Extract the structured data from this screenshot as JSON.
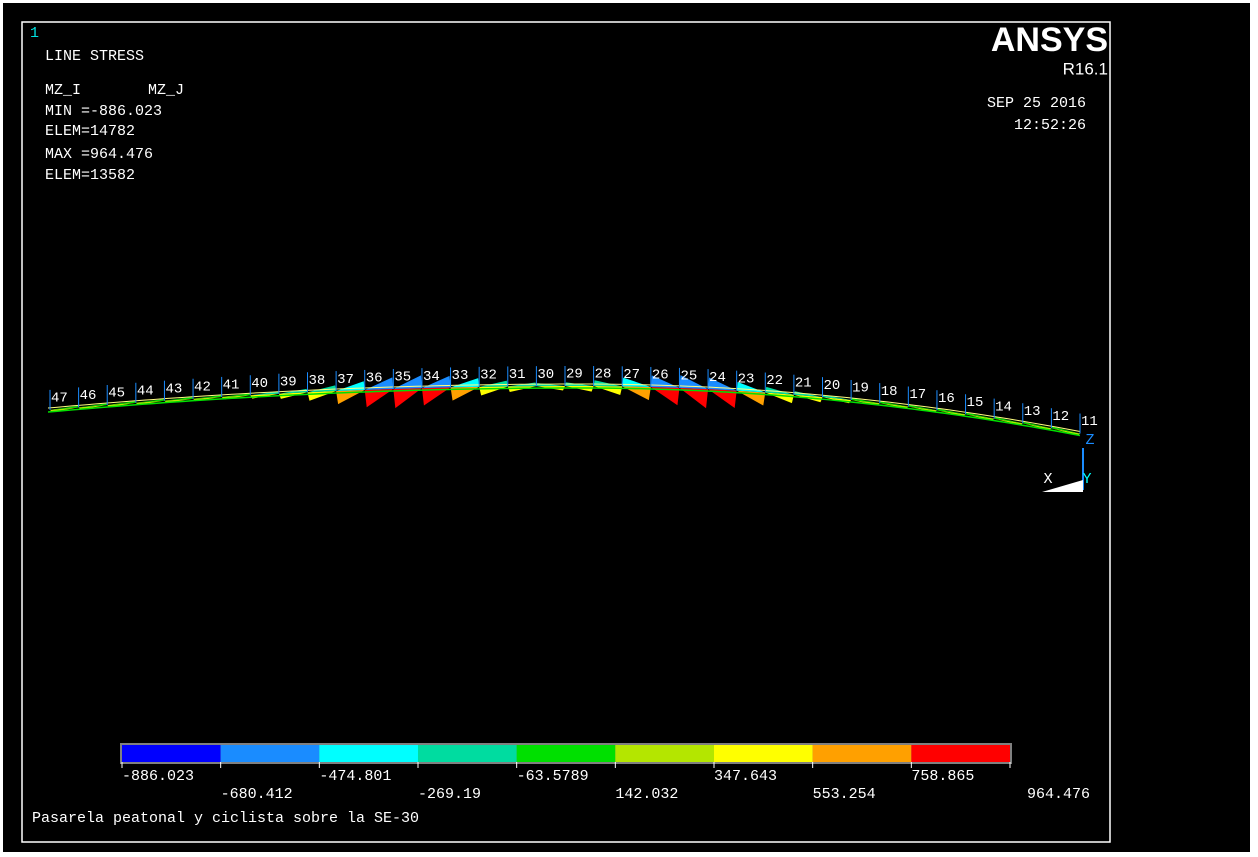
{
  "window_number": "1",
  "plot_title": "LINE STRESS",
  "items": [
    "MZ_I",
    "MZ_J"
  ],
  "stats": [
    "MIN =-886.023",
    "ELEM=14782",
    "MAX =964.476",
    "ELEM=13582"
  ],
  "brand": "ANSYS",
  "release": "R16.1",
  "date": "SEP 25 2016",
  "time": "12:52:26",
  "node_labels": [
    "47",
    "46",
    "45",
    "44",
    "43",
    "42",
    "41",
    "40",
    "39",
    "38",
    "37",
    "36",
    "35",
    "34",
    "33",
    "32",
    "31",
    "30",
    "29",
    "28",
    "27",
    "26",
    "25",
    "24",
    "23",
    "22",
    "21",
    "20",
    "19",
    "18",
    "17",
    "16",
    "15",
    "14",
    "13",
    "12",
    "11"
  ],
  "triad": {
    "x": "X",
    "y": "Y",
    "z": "Z"
  },
  "legend": {
    "colors": [
      "#0000ff",
      "#1a8cff",
      "#00ffff",
      "#00dca0",
      "#00e000",
      "#b4e600",
      "#ffff00",
      "#ffa000",
      "#ff0000"
    ],
    "labels": [
      "-886.023",
      "-680.412",
      "-474.801",
      "-269.19",
      "-63.5789",
      "142.032",
      "347.643",
      "553.254",
      "758.865",
      "964.476"
    ]
  },
  "footer": "Pasarela peatonal y ciclista sobre la SE-30"
}
